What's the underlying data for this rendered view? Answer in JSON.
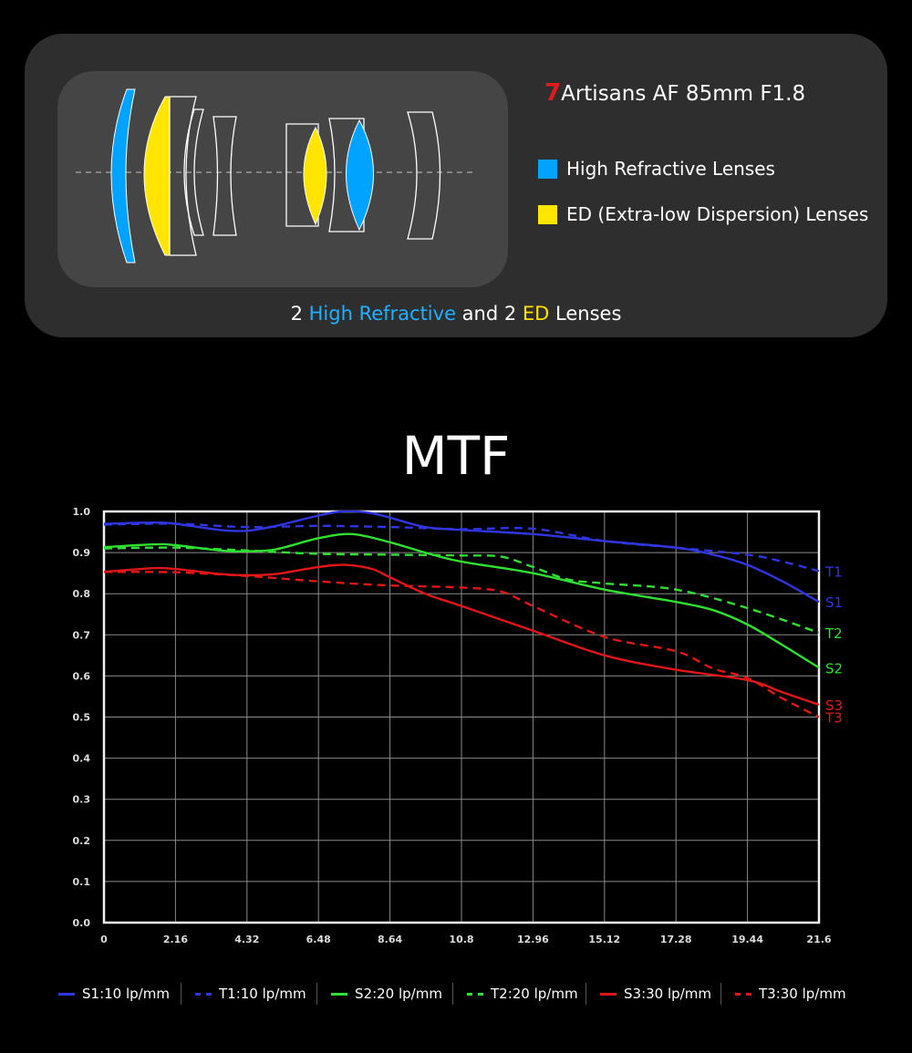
{
  "header": {
    "brand_mark": "7",
    "brand_name": "Artisans",
    "model": "AF 85mm F1.8",
    "legend": [
      {
        "label": "High Refractive Lenses",
        "color": "#00a3ff"
      },
      {
        "label": "ED (Extra-low Dispersion) Lenses",
        "color": "#ffe500"
      }
    ],
    "caption": {
      "p1": "2 ",
      "p2": "High Refractive",
      "p3": " and 2 ",
      "p4": "ED",
      "p5": " Lenses"
    }
  },
  "mtf_title": "MTF",
  "chart_data": {
    "type": "line",
    "title": "MTF",
    "x_ticks": [
      "0",
      "2.16",
      "4.32",
      "6.48",
      "8.64",
      "10.8",
      "12.96",
      "15.12",
      "17.28",
      "19.44",
      "21.6"
    ],
    "y_ticks": [
      "0.0",
      "0.1",
      "0.2",
      "0.3",
      "0.4",
      "0.5",
      "0.6",
      "0.7",
      "0.8",
      "0.9",
      "1.0"
    ],
    "xlim": [
      0,
      21.6
    ],
    "ylim": [
      0,
      1.0
    ],
    "grid": true,
    "series": [
      {
        "name": "S1:10 lp/mm",
        "end_label": "S1",
        "color": "#2f35e0",
        "dash": false,
        "x": [
          0,
          1.5,
          2.16,
          3.5,
          4.32,
          5.2,
          6.48,
          7.2,
          8.0,
          8.64,
          9.7,
          10.8,
          12.96,
          15.12,
          17.28,
          18.4,
          19.44,
          20.5,
          21.6
        ],
        "y": [
          0.97,
          0.973,
          0.97,
          0.955,
          0.953,
          0.965,
          0.99,
          1.0,
          0.997,
          0.985,
          0.962,
          0.955,
          0.945,
          0.928,
          0.912,
          0.895,
          0.87,
          0.83,
          0.78
        ]
      },
      {
        "name": "T1:10 lp/mm",
        "end_label": "T1",
        "color": "#2f35e0",
        "dash": true,
        "x": [
          0,
          2.16,
          4.32,
          6.48,
          8.64,
          10.8,
          12.96,
          15.12,
          17.28,
          19.44,
          20.5,
          21.6
        ],
        "y": [
          0.968,
          0.97,
          0.962,
          0.965,
          0.962,
          0.957,
          0.958,
          0.928,
          0.912,
          0.895,
          0.878,
          0.855
        ]
      },
      {
        "name": "S2:20 lp/mm",
        "end_label": "S2",
        "color": "#30e030",
        "dash": false,
        "x": [
          0,
          1.5,
          2.16,
          3.5,
          4.32,
          5.2,
          6.48,
          7.5,
          8.64,
          9.7,
          10.8,
          12.96,
          15.12,
          17.28,
          18.4,
          19.44,
          20.5,
          21.6
        ],
        "y": [
          0.913,
          0.92,
          0.918,
          0.905,
          0.903,
          0.908,
          0.935,
          0.945,
          0.925,
          0.9,
          0.878,
          0.85,
          0.81,
          0.78,
          0.76,
          0.725,
          0.675,
          0.62
        ]
      },
      {
        "name": "T2:20 lp/mm",
        "end_label": "T2",
        "color": "#30e030",
        "dash": true,
        "x": [
          0,
          2.16,
          4.32,
          6.48,
          8.64,
          10.8,
          12.0,
          12.96,
          14.0,
          15.12,
          17.28,
          19.44,
          21.6
        ],
        "y": [
          0.91,
          0.912,
          0.905,
          0.897,
          0.895,
          0.893,
          0.89,
          0.865,
          0.835,
          0.825,
          0.81,
          0.765,
          0.705
        ]
      },
      {
        "name": "S3:30 lp/mm",
        "end_label": "S3",
        "color": "#e21616",
        "dash": false,
        "x": [
          0,
          1.5,
          2.16,
          3.5,
          4.32,
          5.2,
          6.48,
          7.3,
          8.1,
          8.64,
          9.7,
          10.8,
          12.96,
          15.12,
          17.28,
          19.44,
          20.5,
          21.6
        ],
        "y": [
          0.853,
          0.862,
          0.86,
          0.848,
          0.845,
          0.848,
          0.865,
          0.87,
          0.86,
          0.84,
          0.8,
          0.77,
          0.71,
          0.65,
          0.615,
          0.59,
          0.56,
          0.53
        ]
      },
      {
        "name": "T3:30 lp/mm",
        "end_label": "T3",
        "color": "#e21616",
        "dash": true,
        "x": [
          0,
          2.16,
          4.32,
          6.48,
          8.64,
          10.8,
          12.0,
          12.96,
          15.12,
          17.28,
          18.4,
          19.44,
          20.5,
          21.6
        ],
        "y": [
          0.853,
          0.852,
          0.843,
          0.83,
          0.82,
          0.815,
          0.805,
          0.77,
          0.695,
          0.66,
          0.618,
          0.595,
          0.545,
          0.5
        ]
      }
    ]
  }
}
